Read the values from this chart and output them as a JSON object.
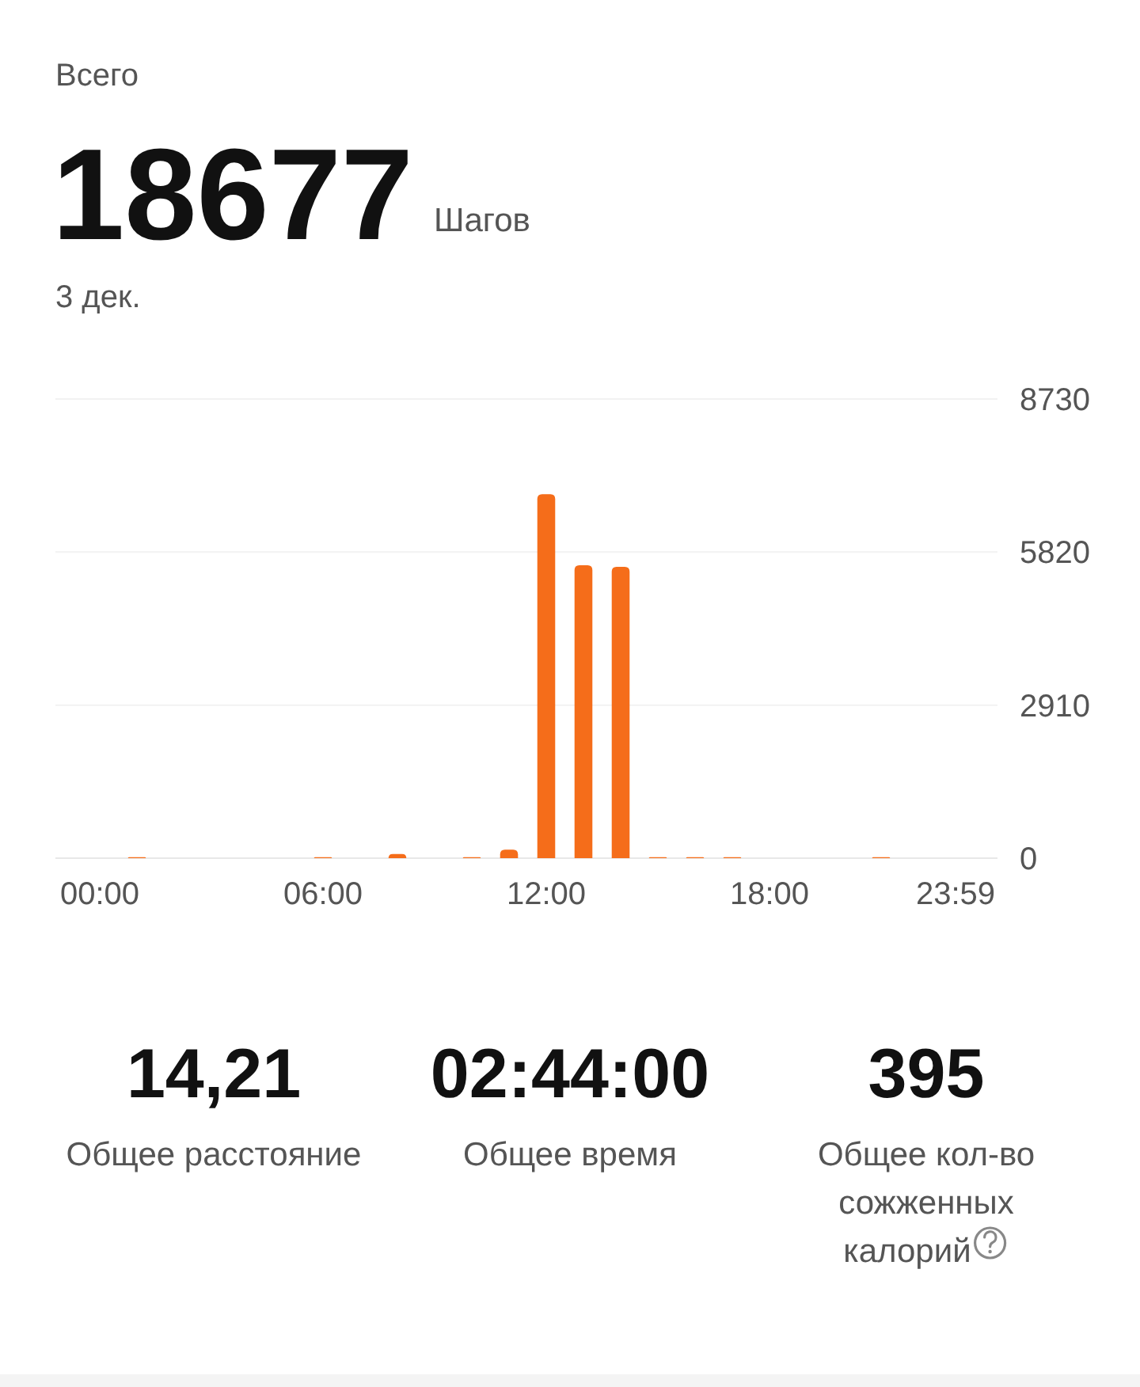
{
  "chart_data": {
    "type": "bar",
    "title": "Всего",
    "subtitle": "3 дек.",
    "categories": [
      "00:00",
      null,
      null,
      null,
      null,
      null,
      "06:00",
      null,
      null,
      null,
      null,
      null,
      "12:00",
      null,
      null,
      null,
      null,
      null,
      "18:00",
      null,
      null,
      null,
      null,
      "23:59"
    ],
    "values": [
      0,
      20,
      0,
      0,
      0,
      0,
      20,
      0,
      80,
      0,
      20,
      160,
      6920,
      5570,
      5540,
      20,
      20,
      20,
      0,
      0,
      0,
      20,
      0,
      0
    ],
    "color": "#f56d1a",
    "ylim": [
      0,
      8730
    ],
    "yticks": [
      0,
      2910,
      5820,
      8730
    ],
    "grid": "y",
    "annotations": [
      "18677",
      "Шагов",
      "14,21",
      "Общее расстояние",
      "02:44:00",
      "Общее время",
      "395",
      "Общее кол-во сожженных калорий"
    ]
  }
}
